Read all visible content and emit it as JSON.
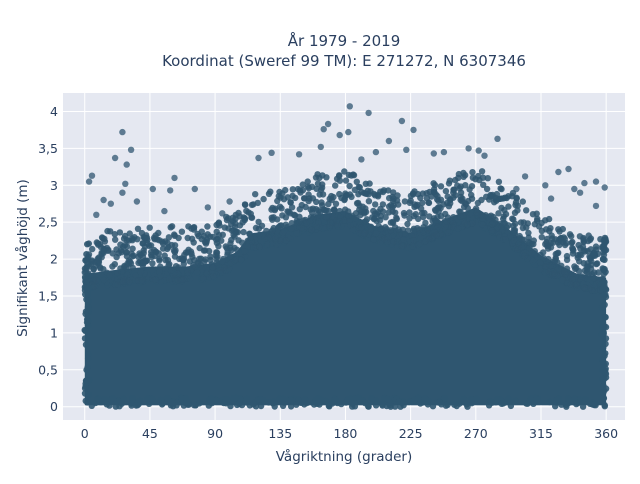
{
  "chart_data": {
    "type": "scatter",
    "title": "År 1979 - 2019",
    "subtitle": "Koordinat (Sweref 99 TM): E 271272, N 6307346",
    "xlabel": "Vågriktning (grader)",
    "ylabel": "Signifikant våghöjd (m)",
    "xlim": [
      -15,
      373
    ],
    "ylim": [
      -0.18,
      4.25
    ],
    "xticks": [
      0,
      45,
      90,
      135,
      180,
      225,
      270,
      315,
      360
    ],
    "xtick_labels": [
      "0",
      "45",
      "90",
      "135",
      "180",
      "225",
      "270",
      "315",
      "360"
    ],
    "yticks": [
      0,
      0.5,
      1,
      1.5,
      2,
      2.5,
      3,
      3.5,
      4
    ],
    "ytick_labels": [
      "0",
      "0,5",
      "1",
      "1,5",
      "2",
      "2,5",
      "3",
      "3,5",
      "4"
    ],
    "grid": true,
    "plot_bgcolor": "#e5e8f1",
    "marker_color": "#2f5670",
    "dense_band": [
      {
        "x": 0,
        "y": 1.95
      },
      {
        "x": 20,
        "y": 2.0
      },
      {
        "x": 45,
        "y": 2.05
      },
      {
        "x": 70,
        "y": 2.05
      },
      {
        "x": 90,
        "y": 2.1
      },
      {
        "x": 105,
        "y": 2.25
      },
      {
        "x": 115,
        "y": 2.5
      },
      {
        "x": 135,
        "y": 2.55
      },
      {
        "x": 160,
        "y": 2.75
      },
      {
        "x": 180,
        "y": 2.8
      },
      {
        "x": 200,
        "y": 2.6
      },
      {
        "x": 225,
        "y": 2.5
      },
      {
        "x": 250,
        "y": 2.7
      },
      {
        "x": 270,
        "y": 2.85
      },
      {
        "x": 290,
        "y": 2.6
      },
      {
        "x": 315,
        "y": 2.2
      },
      {
        "x": 340,
        "y": 1.95
      },
      {
        "x": 360,
        "y": 1.9
      }
    ],
    "outliers": [
      {
        "x": 183,
        "y": 4.07
      },
      {
        "x": 196,
        "y": 3.98
      },
      {
        "x": 219,
        "y": 3.87
      },
      {
        "x": 168,
        "y": 3.83
      },
      {
        "x": 227,
        "y": 3.75
      },
      {
        "x": 26,
        "y": 3.72
      },
      {
        "x": 182,
        "y": 3.72
      },
      {
        "x": 165,
        "y": 3.76
      },
      {
        "x": 176,
        "y": 3.68
      },
      {
        "x": 285,
        "y": 3.63
      },
      {
        "x": 210,
        "y": 3.6
      },
      {
        "x": 163,
        "y": 3.52
      },
      {
        "x": 32,
        "y": 3.48
      },
      {
        "x": 129,
        "y": 3.44
      },
      {
        "x": 248,
        "y": 3.45
      },
      {
        "x": 265,
        "y": 3.5
      },
      {
        "x": 272,
        "y": 3.47
      },
      {
        "x": 222,
        "y": 3.48
      },
      {
        "x": 241,
        "y": 3.43
      },
      {
        "x": 201,
        "y": 3.45
      },
      {
        "x": 276,
        "y": 3.4
      },
      {
        "x": 120,
        "y": 3.37
      },
      {
        "x": 148,
        "y": 3.42
      },
      {
        "x": 191,
        "y": 3.35
      },
      {
        "x": 21,
        "y": 3.37
      },
      {
        "x": 29,
        "y": 3.28
      },
      {
        "x": 28,
        "y": 3.02
      },
      {
        "x": 5,
        "y": 3.13
      },
      {
        "x": 3,
        "y": 3.05
      },
      {
        "x": 62,
        "y": 3.1
      },
      {
        "x": 76,
        "y": 2.95
      },
      {
        "x": 47,
        "y": 2.95
      },
      {
        "x": 59,
        "y": 2.93
      },
      {
        "x": 26,
        "y": 2.9
      },
      {
        "x": 18,
        "y": 2.75
      },
      {
        "x": 13,
        "y": 2.8
      },
      {
        "x": 36,
        "y": 2.78
      },
      {
        "x": 334,
        "y": 3.22
      },
      {
        "x": 327,
        "y": 3.18
      },
      {
        "x": 353,
        "y": 3.05
      },
      {
        "x": 345,
        "y": 3.03
      },
      {
        "x": 359,
        "y": 2.97
      },
      {
        "x": 338,
        "y": 2.95
      },
      {
        "x": 342,
        "y": 2.9
      },
      {
        "x": 304,
        "y": 3.12
      },
      {
        "x": 318,
        "y": 3.0
      },
      {
        "x": 100,
        "y": 2.78
      },
      {
        "x": 85,
        "y": 2.7
      },
      {
        "x": 95,
        "y": 2.62
      },
      {
        "x": 322,
        "y": 2.82
      },
      {
        "x": 298,
        "y": 2.95
      },
      {
        "x": 353,
        "y": 2.72
      },
      {
        "x": 8,
        "y": 2.6
      },
      {
        "x": 55,
        "y": 2.65
      }
    ]
  }
}
